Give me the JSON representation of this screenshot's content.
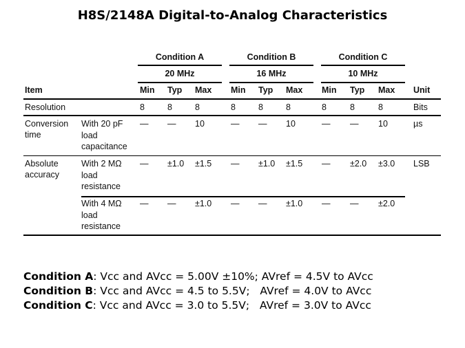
{
  "title": "H8S/2148A Digital-to-Analog Characteristics",
  "table": {
    "conditions": [
      {
        "label": "Condition A",
        "freq": "20 MHz"
      },
      {
        "label": "Condition B",
        "freq": "16 MHz"
      },
      {
        "label": "Condition C",
        "freq": "10 MHz"
      }
    ],
    "headers": {
      "item": "Item",
      "min": "Min",
      "typ": "Typ",
      "max": "Max",
      "unit": "Unit"
    },
    "rows": [
      {
        "item": [
          "Resolution"
        ],
        "sub": [],
        "values": [
          "8",
          "8",
          "8",
          "8",
          "8",
          "8",
          "8",
          "8",
          "8"
        ],
        "unit": "Bits"
      },
      {
        "item": [
          "Conversion",
          "time"
        ],
        "sub": [
          "With 20 pF",
          "load",
          "capacitance"
        ],
        "values": [
          "—",
          "—",
          "10",
          "—",
          "—",
          "10",
          "—",
          "—",
          "10"
        ],
        "unit": "µs"
      },
      {
        "item": [
          "Absolute",
          "accuracy"
        ],
        "sub": [
          "With 2 MΩ",
          "load",
          "resistance"
        ],
        "values": [
          "—",
          "±1.0",
          "±1.5",
          "—",
          "±1.0",
          "±1.5",
          "—",
          "±2.0",
          "±3.0"
        ],
        "unit": "LSB"
      },
      {
        "item": [],
        "sub": [
          "With 4 MΩ",
          "load",
          "resistance"
        ],
        "values": [
          "—",
          "—",
          "±1.0",
          "—",
          "—",
          "±1.0",
          "—",
          "—",
          "±2.0"
        ],
        "unit": ""
      }
    ]
  },
  "notes": [
    {
      "label": "Condition A",
      "text": ": Vcc and AVcc = 5.00V ±10%; AVref = 4.5V to AVcc"
    },
    {
      "label": "Condition B",
      "text": ": Vcc and AVcc = 4.5 to 5.5V;   AVref = 4.0V to AVcc"
    },
    {
      "label": "Condition C",
      "text": ": Vcc and AVcc = 3.0 to 5.5V;   AVref = 3.0V to AVcc"
    }
  ]
}
